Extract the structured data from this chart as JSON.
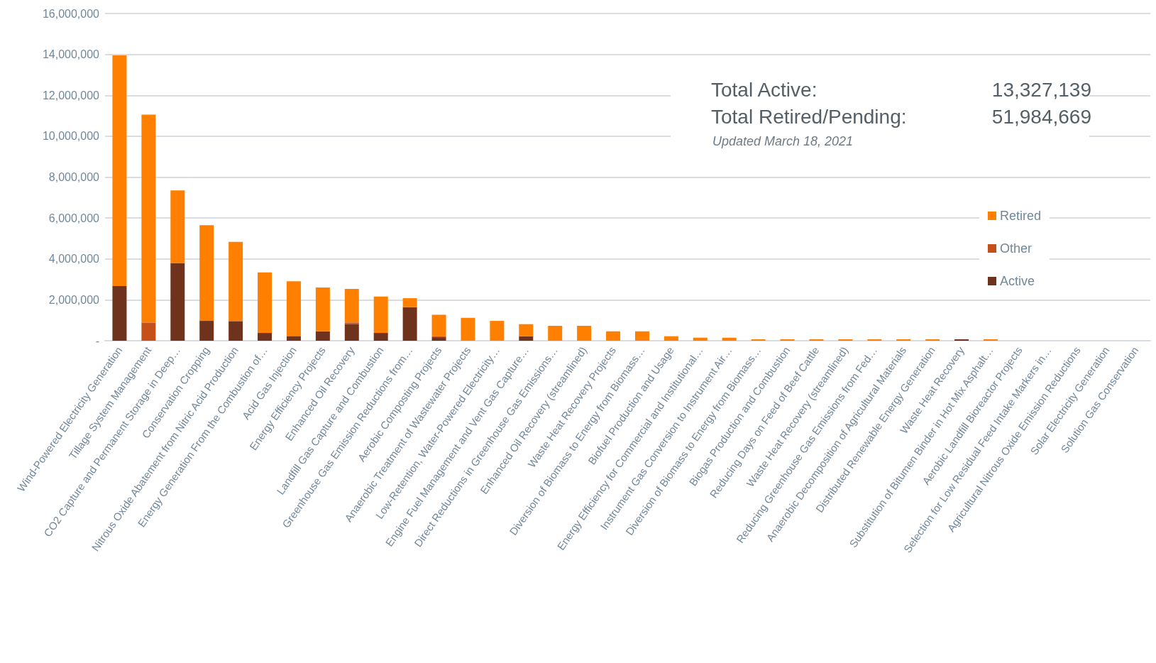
{
  "chart_data": {
    "type": "bar",
    "stacked": true,
    "grid": "y",
    "legend": "right",
    "categories": [
      "Wind-Powered Electricity Generation",
      "Tillage System Management",
      "CO2 Capture and Permanent Storage in Deep…",
      "Conservation Cropping",
      "Nitrous Oxide Abatement from Nitric Acid Production",
      "Energy Generation From the Combustion of…",
      "Acid Gas Injection",
      "Energy Efficiency Projects",
      "Enhanced Oil Recovery",
      "Landfill Gas Capture and Combustion",
      "Greenhouse Gas Emission Reductions from…",
      "Aerobic Composting Projects",
      "Anaerobic Treatment of Wastewater Projects",
      "Low-Retention, Water-Powered Electricity…",
      "Engine Fuel Management and Vent Gas Capture…",
      "Direct Reductions in Greenhouse Gas Emissions…",
      "Enhanced Oil Recovery (streamlined)",
      "Waste Heat Recovery Projects",
      "Diversion of Biomass to Energy from Biomass…",
      "Biofuel Production and Usage",
      "Energy Efficiency for Commercial and Institutional…",
      "Instrument Gas Conversion to Instrument Air…",
      "Diversion of Biomass to Energy from Biomass…",
      "Biogas Production and Combustion",
      "Reducing Days on Feed of Beef Cattle",
      "Waste Heat Recovery (streamlined)",
      "Reducing Greenhouse Gas Emissions from Fed…",
      "Anaerobic Decomposition of Agricultural Materials",
      "Distributed Renewable Energy Generation",
      "Waste Heat Recovery",
      "Substitution of Bitumen Binder in Hot Mix Asphalt…",
      "Aerobic Landfill Bioreactor Projects",
      "Selection for Low Residual Feed Intake Markers in…",
      "Agricultural Nitrous Oxide Emission Reductions",
      "Solar Electricity Generation",
      "Solution Gas Conservation"
    ],
    "series": [
      {
        "name": "Active",
        "color": "#6f321c",
        "values": [
          2670000,
          0,
          3800000,
          970000,
          960000,
          380000,
          230000,
          460000,
          820000,
          380000,
          1640000,
          170000,
          0,
          0,
          220000,
          0,
          0,
          0,
          0,
          0,
          0,
          0,
          0,
          0,
          0,
          0,
          0,
          0,
          0,
          70000,
          0,
          0,
          0,
          0,
          0,
          0
        ]
      },
      {
        "name": "Other",
        "color": "#c5501a",
        "values": [
          0,
          890000,
          0,
          0,
          0,
          0,
          0,
          0,
          70000,
          0,
          0,
          60000,
          0,
          0,
          0,
          0,
          0,
          0,
          0,
          0,
          0,
          0,
          0,
          0,
          0,
          0,
          0,
          0,
          0,
          0,
          0,
          0,
          0,
          0,
          0,
          0
        ]
      },
      {
        "name": "Retired",
        "color": "#ff7f00",
        "values": [
          11280000,
          10160000,
          3550000,
          4680000,
          3870000,
          2960000,
          2680000,
          2140000,
          1640000,
          1780000,
          440000,
          1040000,
          1120000,
          970000,
          590000,
          730000,
          730000,
          460000,
          460000,
          220000,
          150000,
          150000,
          70000,
          70000,
          70000,
          70000,
          70000,
          70000,
          70000,
          0,
          70000,
          0,
          0,
          0,
          0,
          0
        ]
      }
    ],
    "ylim": [
      0,
      16000000
    ],
    "yticks": [
      {
        "value": 0,
        "label": "-"
      },
      {
        "value": 2000000,
        "label": "2,000,000"
      },
      {
        "value": 4000000,
        "label": "4,000,000"
      },
      {
        "value": 6000000,
        "label": "6,000,000"
      },
      {
        "value": 8000000,
        "label": "8,000,000"
      },
      {
        "value": 10000000,
        "label": "10,000,000"
      },
      {
        "value": 12000000,
        "label": "12,000,000"
      },
      {
        "value": 14000000,
        "label": "14,000,000"
      },
      {
        "value": 16000000,
        "label": "16,000,000"
      }
    ],
    "annotations": [
      "Total Active:",
      "13,327,139",
      "Total Retired/Pending:",
      "51,984,669",
      "Updated March 18, 2021"
    ]
  }
}
